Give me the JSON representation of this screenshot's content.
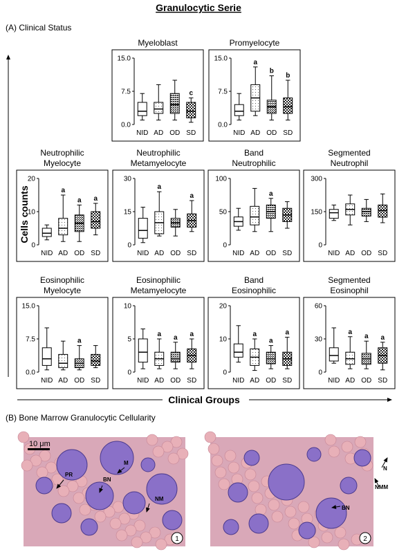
{
  "title": "Granulocytic Serie",
  "panel_a_label": "(A) Clinical Status",
  "y_axis_label": "Cells counts",
  "x_axis_label": "Clinical Groups",
  "panel_b_label": "(B) Bone Marrow Granulocytic Cellularity",
  "chart_data": [
    {
      "type": "box",
      "title": [
        "Myeloblast"
      ],
      "categories": [
        "NID",
        "AD",
        "OD",
        "SD"
      ],
      "min": [
        1,
        1,
        1,
        0.5
      ],
      "q1": [
        2,
        2.5,
        2.5,
        1.5
      ],
      "median": [
        3,
        3.5,
        4.5,
        3
      ],
      "q3": [
        5,
        5,
        7,
        5
      ],
      "max": [
        7,
        9,
        10,
        6
      ],
      "annotations": [
        null,
        null,
        null,
        "c"
      ],
      "ylim": [
        0,
        15
      ],
      "yticks": [
        {
          "value": 0,
          "label": "0.0"
        },
        7.5,
        {
          "value": 15,
          "label": "15.0"
        }
      ]
    },
    {
      "type": "box",
      "title": [
        "Promyelocyte"
      ],
      "categories": [
        "NID",
        "AD",
        "OD",
        "SD"
      ],
      "min": [
        1,
        2,
        1,
        1
      ],
      "q1": [
        2,
        3,
        2.5,
        2.5
      ],
      "median": [
        3,
        6,
        4,
        4
      ],
      "q3": [
        4.5,
        9,
        5.5,
        6
      ],
      "max": [
        7,
        13,
        11,
        10
      ],
      "annotations": [
        null,
        "a",
        "b",
        "b"
      ],
      "ylim": [
        0,
        15
      ],
      "yticks": [
        {
          "value": 0,
          "label": "0.0"
        },
        7.5,
        {
          "value": 15,
          "label": "15.0"
        }
      ]
    },
    {
      "type": "box",
      "title": [
        "Neutrophilic",
        "Myelocyte"
      ],
      "categories": [
        "NID",
        "AD",
        "OD",
        "SD"
      ],
      "min": [
        1.5,
        1,
        1,
        3
      ],
      "q1": [
        2.5,
        3,
        4,
        5
      ],
      "median": [
        3.5,
        5,
        6.5,
        7
      ],
      "q3": [
        5,
        8,
        9,
        10
      ],
      "max": [
        6,
        15,
        12,
        12.5
      ],
      "annotations": [
        null,
        "a",
        "a",
        "a"
      ],
      "ylim": [
        0,
        20
      ],
      "yticks": [
        0,
        10,
        20
      ]
    },
    {
      "type": "box",
      "title": [
        "Neutrophilic",
        "Metamyelocyte"
      ],
      "categories": [
        "NID",
        "AD",
        "OD",
        "SD"
      ],
      "min": [
        1,
        4,
        4,
        6
      ],
      "q1": [
        3,
        5,
        8,
        8
      ],
      "median": [
        6.5,
        10,
        10,
        11
      ],
      "q3": [
        12,
        15,
        12,
        14
      ],
      "max": [
        17,
        24,
        16,
        20
      ],
      "annotations": [
        null,
        "a",
        null,
        "a"
      ],
      "ylim": [
        0,
        30
      ],
      "yticks": [
        0,
        15,
        30
      ]
    },
    {
      "type": "box",
      "title": [
        "Band",
        "Neutrophilic"
      ],
      "categories": [
        "NID",
        "AD",
        "OD",
        "SD"
      ],
      "min": [
        22,
        20,
        20,
        25
      ],
      "q1": [
        28,
        30,
        40,
        35
      ],
      "median": [
        35,
        42,
        50,
        45
      ],
      "q3": [
        42,
        58,
        60,
        55
      ],
      "max": [
        55,
        85,
        70,
        65
      ],
      "annotations": [
        null,
        null,
        "a",
        null
      ],
      "ylim": [
        0,
        100
      ],
      "yticks": [
        0,
        50,
        100
      ]
    },
    {
      "type": "box",
      "title": [
        "Segmented",
        "Neutrophil"
      ],
      "categories": [
        "NID",
        "AD",
        "OD",
        "SD"
      ],
      "min": [
        110,
        90,
        105,
        100
      ],
      "q1": [
        120,
        135,
        130,
        125
      ],
      "median": [
        145,
        160,
        150,
        155
      ],
      "q3": [
        160,
        185,
        165,
        180
      ],
      "max": [
        180,
        225,
        205,
        230
      ],
      "annotations": [
        null,
        null,
        null,
        null
      ],
      "ylim": [
        0,
        300
      ],
      "yticks": [
        0,
        150,
        300
      ]
    },
    {
      "type": "box",
      "title": [
        "Eosinophilic",
        "Myelocyte"
      ],
      "categories": [
        "NID",
        "AD",
        "OD",
        "SD"
      ],
      "min": [
        0.5,
        0.5,
        0.5,
        1
      ],
      "q1": [
        1.5,
        1,
        1,
        1.5
      ],
      "median": [
        3,
        2,
        2,
        2.5
      ],
      "q3": [
        5.5,
        4,
        3,
        4
      ],
      "max": [
        10,
        7,
        6,
        6
      ],
      "annotations": [
        null,
        null,
        "a",
        null
      ],
      "ylim": [
        0,
        15
      ],
      "yticks": [
        {
          "value": 0,
          "label": "0.0"
        },
        7.5,
        {
          "value": 15,
          "label": "15.0"
        }
      ]
    },
    {
      "type": "box",
      "title": [
        "Eosinophilic",
        "Metamyelocyte"
      ],
      "categories": [
        "NID",
        "AD",
        "OD",
        "SD"
      ],
      "min": [
        0.5,
        0.5,
        0.5,
        0.5
      ],
      "q1": [
        1.5,
        1,
        1.5,
        1.5
      ],
      "median": [
        3,
        2,
        2,
        2.5
      ],
      "q3": [
        5,
        3,
        3,
        3.5
      ],
      "max": [
        6.5,
        5,
        4.5,
        5
      ],
      "annotations": [
        null,
        "a",
        "a",
        "a"
      ],
      "ylim": [
        0,
        10
      ],
      "yticks": [
        0,
        5,
        10
      ]
    },
    {
      "type": "box",
      "title": [
        "Band",
        "Eosinophilic"
      ],
      "categories": [
        "NID",
        "AD",
        "OD",
        "SD"
      ],
      "min": [
        3,
        0.5,
        1,
        1
      ],
      "q1": [
        4.5,
        2,
        2.5,
        2
      ],
      "median": [
        6,
        4.5,
        4,
        4
      ],
      "q3": [
        8.5,
        7,
        6,
        6
      ],
      "max": [
        14,
        10,
        8,
        10.5
      ],
      "annotations": [
        null,
        "a",
        "a",
        "a"
      ],
      "ylim": [
        0,
        20
      ],
      "yticks": [
        0,
        10,
        20
      ]
    },
    {
      "type": "box",
      "title": [
        "Segmented",
        "Eosinophil"
      ],
      "categories": [
        "NID",
        "AD",
        "OD",
        "SD"
      ],
      "min": [
        8,
        3,
        3,
        2
      ],
      "q1": [
        10,
        7,
        7,
        8
      ],
      "median": [
        15,
        12,
        12,
        15
      ],
      "q3": [
        22,
        18,
        17,
        22
      ],
      "max": [
        40,
        32,
        28,
        27
      ],
      "annotations": [
        null,
        "a",
        "a",
        "a"
      ],
      "ylim": [
        0,
        60
      ],
      "yticks": [
        0,
        30,
        60
      ]
    }
  ],
  "micrographs": [
    {
      "scale_bar": "10 μm",
      "labels": [
        "PR",
        "BN",
        "M",
        "NM"
      ],
      "number": "1"
    },
    {
      "labels": [
        "N",
        "NMM",
        "BN"
      ],
      "number": "2"
    }
  ]
}
